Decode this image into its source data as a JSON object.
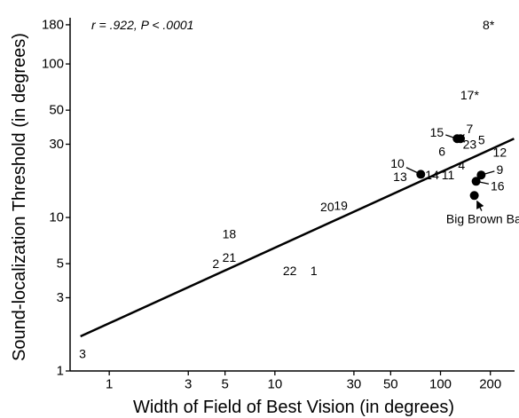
{
  "chart_data": {
    "type": "scatter",
    "annotation": "r = .922, P < .0001",
    "xlabel": "Width of Field of Best Vision (in degrees)",
    "ylabel": "Sound-localization Threshold (in degrees)",
    "xscale": "log",
    "yscale": "log",
    "xlim": [
      0.58,
      280
    ],
    "ylim": [
      1,
      200
    ],
    "xticks": [
      1,
      3,
      5,
      10,
      30,
      50,
      100,
      200
    ],
    "yticks": [
      1,
      3,
      5,
      10,
      30,
      50,
      100,
      180
    ],
    "color": "#000000",
    "points": [
      {
        "label": "3",
        "x": 0.69,
        "y": 1.3
      },
      {
        "label": "2",
        "x": 4.4,
        "y": 5.0
      },
      {
        "label": "21",
        "x": 5.3,
        "y": 5.5
      },
      {
        "label": "18",
        "x": 5.3,
        "y": 7.8
      },
      {
        "label": "22",
        "x": 12.3,
        "y": 4.5
      },
      {
        "label": "1",
        "x": 17.2,
        "y": 4.5
      },
      {
        "label": "20",
        "x": 20.7,
        "y": 11.7
      },
      {
        "label": "19",
        "x": 25,
        "y": 12
      },
      {
        "label": "13",
        "x": 57,
        "y": 18.4
      },
      {
        "label": "10",
        "x": 55,
        "y": 22.5,
        "dot": {
          "x": 76,
          "y": 19.1
        }
      },
      {
        "label": "14",
        "x": 89,
        "y": 18.9
      },
      {
        "label": "11",
        "x": 111,
        "y": 18.9
      },
      {
        "label": "4",
        "x": 134,
        "y": 22
      },
      {
        "label": "6",
        "x": 102,
        "y": 27
      },
      {
        "label": "15",
        "x": 95,
        "y": 36,
        "dot": {
          "x": 126,
          "y": 32.6
        }
      },
      {
        "label": "7",
        "x": 150,
        "y": 38,
        "dot": {
          "x": 132,
          "y": 32.6
        }
      },
      {
        "label": "23",
        "x": 150,
        "y": 30
      },
      {
        "label": "5",
        "x": 177,
        "y": 32
      },
      {
        "label": "12",
        "x": 228,
        "y": 26.6
      },
      {
        "label": "9",
        "x": 228,
        "y": 20.5,
        "dot": {
          "x": 176,
          "y": 18.9
        }
      },
      {
        "label": "16",
        "x": 221,
        "y": 16.1,
        "dot": {
          "x": 164,
          "y": 17.2
        }
      },
      {
        "label": "17*",
        "x": 150,
        "y": 63
      },
      {
        "label": "8*",
        "x": 195,
        "y": 180
      },
      {
        "label": "Big Brown Bat",
        "x": 187,
        "y": 9.8,
        "dot": {
          "x": 160,
          "y": 13.9
        },
        "arrow": true
      }
    ],
    "fit_line": {
      "x": [
        0.67,
        278
      ],
      "y": [
        1.68,
        32.6
      ]
    }
  }
}
